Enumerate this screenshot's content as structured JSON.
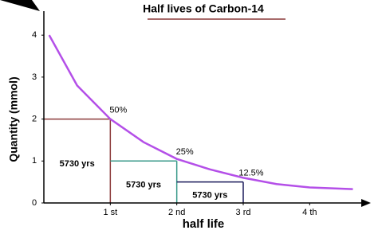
{
  "chart_data": {
    "type": "line",
    "title": "Half lives of Carbon-14",
    "x_label": "half life",
    "y_label": "Quantity (mmol)",
    "xlim": [
      0,
      4.92
    ],
    "ylim": [
      0,
      4.8
    ],
    "xticks": [
      {
        "value": 1,
        "label": "1 st"
      },
      {
        "value": 2,
        "label": "2 nd"
      },
      {
        "value": 3,
        "label": "3 rd"
      },
      {
        "value": 4,
        "label": "4 th"
      }
    ],
    "yticks": [
      0,
      1,
      2,
      3,
      4
    ],
    "series": [
      {
        "name": "Carbon-14",
        "color": "#b44fe8",
        "x": [
          0.08,
          0.5,
          1,
          1.5,
          2,
          2.5,
          3,
          3.5,
          4,
          4.65
        ],
        "values": [
          4.0,
          2.8,
          2.0,
          1.45,
          1.05,
          0.8,
          0.6,
          0.45,
          0.37,
          0.33
        ]
      }
    ],
    "steps": [
      {
        "x": [
          0,
          1
        ],
        "y": 2,
        "label": "5730 yrs",
        "percent": "50%",
        "color": "#8b3a3a"
      },
      {
        "x": [
          1,
          2
        ],
        "y": 1,
        "label": "5730 yrs",
        "percent": "25%",
        "color": "#3a9a8a"
      },
      {
        "x": [
          2,
          3
        ],
        "y": 0.5,
        "label": "5730 yrs",
        "percent": "12.5%",
        "color": "#1a1a5a"
      }
    ]
  }
}
